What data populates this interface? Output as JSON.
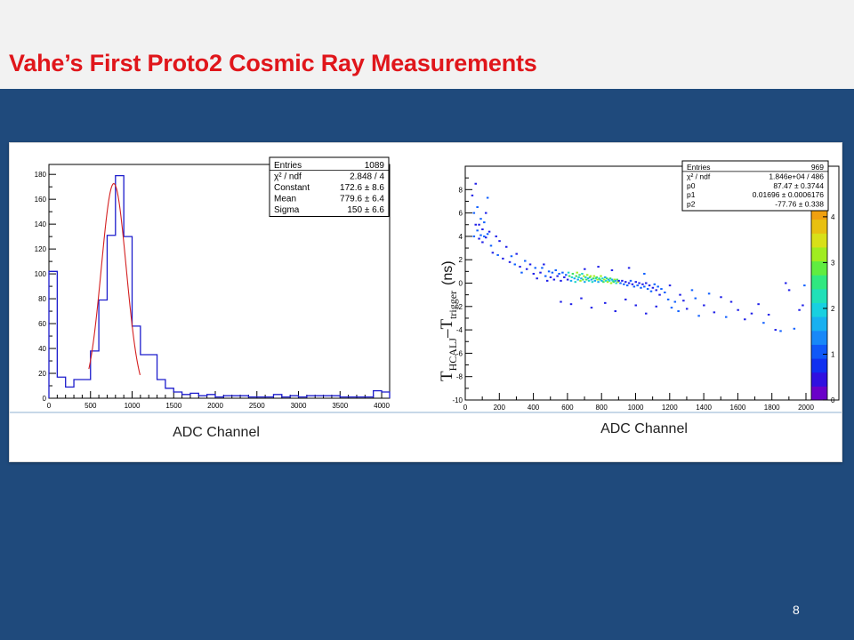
{
  "slide": {
    "title": "Vahe’s First Proto2 Cosmic Ray Measurements",
    "page_number": "8"
  },
  "colors": {
    "background": "#1f4a7c",
    "title": "#e0161b",
    "hist_line": "#1c1ccc",
    "fit_line": "#d42020"
  },
  "chart_data": [
    {
      "type": "bar",
      "style": "step-histogram",
      "xlabel": "ADC Channel",
      "ylabel": "",
      "xlim": [
        0,
        4096
      ],
      "ylim": [
        0,
        188
      ],
      "x_ticks": [
        0,
        500,
        1000,
        1500,
        2000,
        2500,
        3000,
        3500,
        4000
      ],
      "y_ticks": [
        0,
        20,
        40,
        60,
        80,
        100,
        120,
        140,
        160,
        180
      ],
      "bin_width": 100,
      "values": [
        102,
        17,
        9,
        15,
        15,
        38,
        79,
        131,
        179,
        130,
        58,
        35,
        35,
        15,
        8,
        5,
        3,
        4,
        2,
        3,
        1,
        2,
        2,
        2,
        1,
        1,
        1,
        3,
        1,
        2,
        1,
        2,
        2,
        2,
        2,
        1,
        1,
        1,
        1,
        6,
        5
      ],
      "fit": {
        "type": "gaussian",
        "constant": 172.6,
        "mean": 779.6,
        "sigma": 150
      },
      "stats_box": [
        {
          "label": "Entries",
          "value": "1089"
        },
        {
          "label": "χ² / ndf",
          "value": "2.848 / 4"
        },
        {
          "label": "Constant",
          "value": "172.6 ± 8.6"
        },
        {
          "label": "Mean",
          "value": "779.6 ± 6.4"
        },
        {
          "label": "Sigma",
          "value": "150 ± 6.6"
        }
      ],
      "legend_placement": "top-right"
    },
    {
      "type": "heatmap",
      "xlabel": "ADC Channel",
      "ylabel": "T_HCAL,J – T_trigger (ns)",
      "ylabel_main": "T",
      "ylabel_sub1": "HCALJ",
      "ylabel_mid": "–T",
      "ylabel_sub2": "trigger",
      "ylabel_unit": "(ns)",
      "xlim": [
        0,
        2000
      ],
      "ylim": [
        -10,
        10
      ],
      "x_ticks": [
        0,
        200,
        400,
        600,
        800,
        1000,
        1200,
        1400,
        1600,
        1800,
        2000
      ],
      "y_ticks": [
        -10,
        -8,
        -6,
        -4,
        -2,
        0,
        2,
        4,
        6,
        8
      ],
      "z_ticks": [
        0,
        1,
        2,
        3,
        4
      ],
      "colorbar": true,
      "stats_box": [
        {
          "label": "Entries",
          "value": "969"
        },
        {
          "label": "χ² / ndf",
          "value": "1.846e+04 / 486"
        },
        {
          "label": "p0",
          "value": "87.47 ± 0.3744"
        },
        {
          "label": "p1",
          "value": "0.01696 ± 0.0006176"
        },
        {
          "label": "p2",
          "value": "-77.76 ± 0.338"
        }
      ],
      "points": [
        [
          40,
          7.5
        ],
        [
          50,
          6
        ],
        [
          50,
          4
        ],
        [
          60,
          5
        ],
        [
          60,
          8.5
        ],
        [
          70,
          4.5
        ],
        [
          70,
          6.5
        ],
        [
          80,
          5
        ],
        [
          80,
          3.8
        ],
        [
          90,
          5.5
        ],
        [
          90,
          4.1
        ],
        [
          100,
          3.5
        ],
        [
          100,
          4.6
        ],
        [
          110,
          5.2
        ],
        [
          110,
          4
        ],
        [
          120,
          3.9
        ],
        [
          120,
          6
        ],
        [
          130,
          4.2
        ],
        [
          130,
          7.3
        ],
        [
          140,
          4.4
        ],
        [
          150,
          3.2
        ],
        [
          160,
          2.6
        ],
        [
          180,
          4
        ],
        [
          190,
          2.4
        ],
        [
          200,
          3.6
        ],
        [
          220,
          2.1
        ],
        [
          240,
          3.1
        ],
        [
          260,
          1.8
        ],
        [
          270,
          2.3
        ],
        [
          290,
          1.6
        ],
        [
          300,
          2.5
        ],
        [
          320,
          1.4
        ],
        [
          330,
          0.9
        ],
        [
          350,
          1.9
        ],
        [
          360,
          1.2
        ],
        [
          380,
          1.6
        ],
        [
          400,
          0.8
        ],
        [
          410,
          1.3
        ],
        [
          420,
          0.4
        ],
        [
          440,
          0.9
        ],
        [
          450,
          1.3
        ],
        [
          460,
          1.6
        ],
        [
          470,
          0.6
        ],
        [
          480,
          0.2
        ],
        [
          490,
          1
        ],
        [
          500,
          0.5
        ],
        [
          510,
          0.9
        ],
        [
          520,
          0.3
        ],
        [
          530,
          1.1
        ],
        [
          540,
          0.6
        ],
        [
          550,
          0.8
        ],
        [
          560,
          0.2
        ],
        [
          570,
          0.9
        ],
        [
          580,
          0.5
        ],
        [
          590,
          0.7
        ],
        [
          600,
          0.3
        ],
        [
          605,
          0.9
        ],
        [
          610,
          0.6
        ],
        [
          620,
          0.2
        ],
        [
          625,
          0.5
        ],
        [
          630,
          0.8
        ],
        [
          640,
          0.4
        ],
        [
          645,
          0.1
        ],
        [
          650,
          0.6
        ],
        [
          655,
          0.9
        ],
        [
          660,
          0.3
        ],
        [
          665,
          0.5
        ],
        [
          670,
          0.7
        ],
        [
          675,
          0.2
        ],
        [
          680,
          0.4
        ],
        [
          685,
          0.8
        ],
        [
          690,
          0.3
        ],
        [
          695,
          0.6
        ],
        [
          700,
          0.1
        ],
        [
          705,
          0.5
        ],
        [
          710,
          0.3
        ],
        [
          715,
          0.7
        ],
        [
          720,
          0.4
        ],
        [
          725,
          0.2
        ],
        [
          730,
          0.5
        ],
        [
          735,
          0.6
        ],
        [
          740,
          0.3
        ],
        [
          745,
          0.1
        ],
        [
          750,
          0.4
        ],
        [
          755,
          0.6
        ],
        [
          760,
          0.2
        ],
        [
          765,
          0.4
        ],
        [
          770,
          0.5
        ],
        [
          775,
          0.3
        ],
        [
          780,
          0.1
        ],
        [
          785,
          0.4
        ],
        [
          790,
          0.3
        ],
        [
          795,
          0.6
        ],
        [
          800,
          0.2
        ],
        [
          805,
          0.4
        ],
        [
          810,
          0.1
        ],
        [
          815,
          0.3
        ],
        [
          820,
          0.5
        ],
        [
          825,
          0.2
        ],
        [
          830,
          0.4
        ],
        [
          835,
          0.1
        ],
        [
          840,
          0.3
        ],
        [
          845,
          0.2
        ],
        [
          850,
          0.4
        ],
        [
          855,
          0
        ],
        [
          860,
          0.3
        ],
        [
          865,
          0.2
        ],
        [
          870,
          0.1
        ],
        [
          875,
          0.3
        ],
        [
          880,
          0.2
        ],
        [
          885,
          0
        ],
        [
          890,
          0.3
        ],
        [
          895,
          0.1
        ],
        [
          900,
          0.2
        ],
        [
          910,
          0
        ],
        [
          920,
          0.2
        ],
        [
          930,
          -0.1
        ],
        [
          940,
          0.1
        ],
        [
          950,
          -0.2
        ],
        [
          960,
          0
        ],
        [
          970,
          0.2
        ],
        [
          980,
          -0.1
        ],
        [
          990,
          -0.3
        ],
        [
          1000,
          0.1
        ],
        [
          1010,
          -0.2
        ],
        [
          1020,
          0
        ],
        [
          1030,
          -0.4
        ],
        [
          1040,
          -0.1
        ],
        [
          1050,
          -0.3
        ],
        [
          1060,
          0
        ],
        [
          1070,
          -0.5
        ],
        [
          1080,
          -0.2
        ],
        [
          1090,
          -0.7
        ],
        [
          1100,
          -0.4
        ],
        [
          1110,
          -0.1
        ],
        [
          1120,
          -0.6
        ],
        [
          1130,
          -0.3
        ],
        [
          1140,
          -1
        ],
        [
          1150,
          -0.5
        ],
        [
          1170,
          -0.8
        ],
        [
          1190,
          -1.4
        ],
        [
          1200,
          -0.2
        ],
        [
          1210,
          -2.1
        ],
        [
          1230,
          -1.6
        ],
        [
          1250,
          -2.4
        ],
        [
          1260,
          -1
        ],
        [
          1280,
          -1.5
        ],
        [
          1300,
          -2.2
        ],
        [
          1330,
          -0.6
        ],
        [
          1350,
          -1.3
        ],
        [
          1370,
          -2.8
        ],
        [
          1400,
          -1.9
        ],
        [
          1430,
          -0.9
        ],
        [
          1460,
          -2.5
        ],
        [
          1500,
          -1.2
        ],
        [
          1530,
          -2.9
        ],
        [
          1560,
          -1.6
        ],
        [
          1600,
          -2.3
        ],
        [
          1640,
          -3.1
        ],
        [
          1680,
          -2.6
        ],
        [
          1720,
          -1.8
        ],
        [
          1750,
          -3.4
        ],
        [
          1780,
          -2.7
        ],
        [
          1820,
          -4
        ],
        [
          1850,
          -4.1
        ],
        [
          1880,
          0
        ],
        [
          1900,
          -0.6
        ],
        [
          1930,
          -3.9
        ],
        [
          1960,
          -2.3
        ],
        [
          1980,
          -1.9
        ],
        [
          1990,
          -0.2
        ],
        [
          560,
          -1.6
        ],
        [
          620,
          -1.8
        ],
        [
          680,
          -1.3
        ],
        [
          740,
          -2.1
        ],
        [
          820,
          -1.7
        ],
        [
          880,
          -2.4
        ],
        [
          940,
          -1.4
        ],
        [
          1000,
          -1.9
        ],
        [
          1060,
          -2.6
        ],
        [
          1120,
          -2
        ],
        [
          700,
          1.2
        ],
        [
          780,
          1.4
        ],
        [
          860,
          1.1
        ],
        [
          960,
          1.3
        ],
        [
          1050,
          0.8
        ]
      ]
    }
  ]
}
